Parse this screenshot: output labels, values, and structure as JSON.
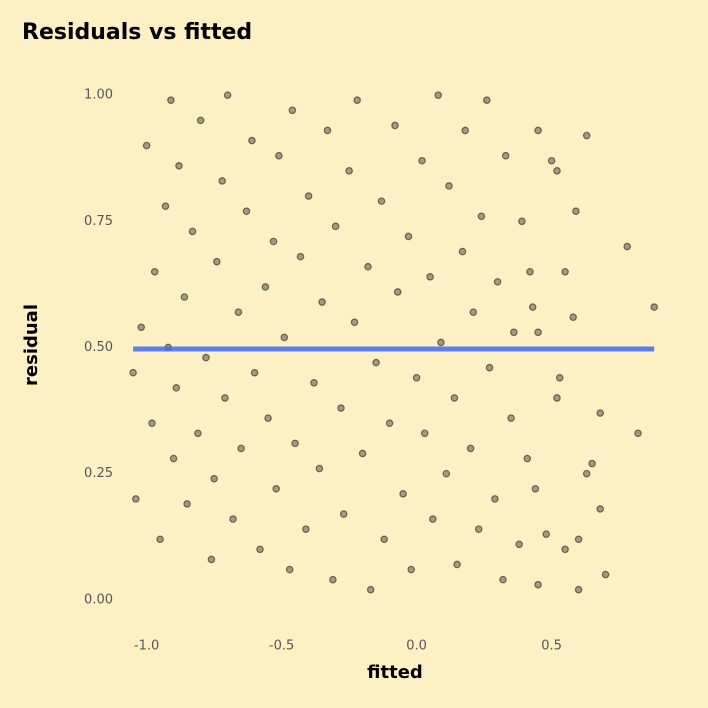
{
  "chart_data": {
    "type": "scatter",
    "title": "Residuals vs fitted",
    "x_label": "fitted",
    "y_label": "residual",
    "point_color": "#000000",
    "background": "#fdf0c4",
    "xlim": [
      -1.08,
      0.92
    ],
    "ylim": [
      -0.04,
      1.03
    ],
    "xticks": [
      {
        "value": -1,
        "label": "-1.0"
      },
      {
        "value": -0.5,
        "label": "-0.5"
      },
      {
        "value": 0,
        "label": "0.0"
      },
      {
        "value": 0.5,
        "label": "0.5"
      }
    ],
    "yticks": [
      {
        "value": 0,
        "label": "0.00"
      },
      0.25,
      {
        "value": 0.5,
        "label": "0.50"
      },
      0.75,
      {
        "value": 1,
        "label": "1.00"
      }
    ],
    "x": [
      0.88,
      0.82,
      0.78,
      0.7,
      0.68,
      0.68,
      0.65,
      0.63,
      0.6,
      0.6,
      0.58,
      0.63,
      0.59,
      0.55,
      0.53,
      0.52,
      0.55,
      0.52,
      0.45,
      0.48,
      0.45,
      0.5,
      0.42,
      0.45,
      0.44,
      -1.04,
      -1.05,
      -1.02,
      -1.0,
      -0.98,
      -0.97,
      -0.95,
      -0.93,
      -0.92,
      -0.91,
      -0.9,
      -0.89,
      -0.88,
      -0.86,
      -0.85,
      -0.83,
      -0.81,
      -0.8,
      -0.78,
      -0.76,
      -0.75,
      -0.74,
      -0.72,
      -0.71,
      -0.7,
      -0.68,
      -0.66,
      -0.65,
      -0.63,
      -0.61,
      -0.6,
      -0.58,
      -0.56,
      -0.55,
      -0.53,
      -0.52,
      -0.51,
      -0.49,
      -0.47,
      -0.46,
      -0.45,
      -0.43,
      -0.41,
      -0.4,
      -0.38,
      -0.36,
      -0.35,
      -0.33,
      -0.31,
      -0.3,
      -0.28,
      -0.27,
      -0.25,
      -0.23,
      -0.22,
      -0.2,
      -0.18,
      -0.17,
      -0.15,
      -0.13,
      -0.12,
      -0.1,
      -0.08,
      -0.07,
      -0.05,
      -0.03,
      -0.02,
      0.0,
      0.02,
      0.03,
      0.05,
      0.06,
      0.08,
      0.09,
      0.11,
      0.12,
      0.14,
      0.15,
      0.17,
      0.18,
      0.2,
      0.21,
      0.23,
      0.24,
      0.26,
      0.27,
      0.29,
      0.3,
      0.32,
      0.33,
      0.35,
      0.36,
      0.38,
      0.39,
      0.41,
      0.43
    ],
    "y": [
      0.58,
      0.33,
      0.7,
      0.05,
      0.18,
      0.37,
      0.27,
      0.25,
      0.02,
      0.12,
      0.56,
      0.92,
      0.77,
      0.1,
      0.44,
      0.85,
      0.65,
      0.4,
      0.03,
      0.13,
      0.93,
      0.87,
      0.65,
      0.53,
      0.22,
      0.2,
      0.45,
      0.54,
      0.9,
      0.35,
      0.65,
      0.12,
      0.78,
      0.5,
      0.99,
      0.28,
      0.42,
      0.86,
      0.6,
      0.19,
      0.73,
      0.33,
      0.95,
      0.48,
      0.08,
      0.24,
      0.67,
      0.83,
      0.4,
      1.0,
      0.16,
      0.57,
      0.3,
      0.77,
      0.91,
      0.45,
      0.1,
      0.62,
      0.36,
      0.71,
      0.22,
      0.88,
      0.52,
      0.06,
      0.97,
      0.31,
      0.68,
      0.14,
      0.8,
      0.43,
      0.26,
      0.59,
      0.93,
      0.04,
      0.74,
      0.38,
      0.17,
      0.85,
      0.55,
      0.99,
      0.29,
      0.66,
      0.02,
      0.47,
      0.79,
      0.12,
      0.35,
      0.94,
      0.61,
      0.21,
      0.72,
      0.06,
      0.44,
      0.87,
      0.33,
      0.64,
      0.16,
      1.0,
      0.51,
      0.25,
      0.82,
      0.4,
      0.07,
      0.69,
      0.93,
      0.3,
      0.57,
      0.14,
      0.76,
      0.99,
      0.46,
      0.2,
      0.63,
      0.04,
      0.88,
      0.36,
      0.53,
      0.11,
      0.75,
      0.28,
      0.58
    ],
    "smooth": {
      "x": [
        -1.05,
        0.88
      ],
      "y": [
        0.497,
        0.497
      ],
      "color": "#3b6ff0"
    }
  }
}
